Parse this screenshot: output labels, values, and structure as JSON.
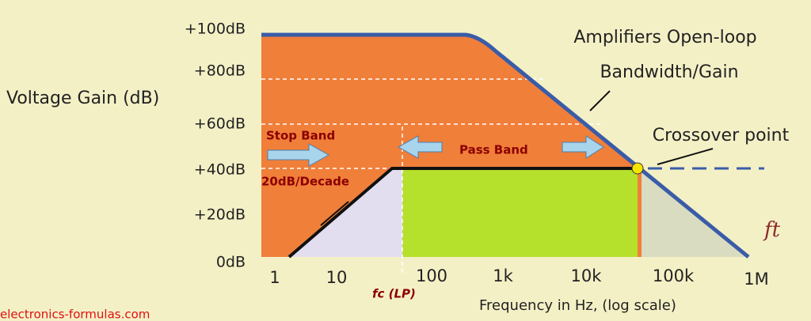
{
  "title": [
    "Amplifiers Open-loop",
    "Bandwidth/Gain"
  ],
  "y_axis_label": "Voltage Gain (dB)",
  "y_labels": [
    "+100dB",
    "+80dB",
    "+60dB",
    "+40dB",
    "+20dB",
    "0dB"
  ],
  "x_labels": [
    "1",
    "10",
    "100",
    "1k",
    "10k",
    "100k",
    "1M"
  ],
  "x_axis_label": "Frequency in Hz, (log scale)",
  "annotations": {
    "stop_band": "Stop Band",
    "pass_band": "Pass Band",
    "slope": "20dB/Decade",
    "crossover": "Crossover point",
    "fc": "fc (LP)",
    "ft": "ft"
  },
  "credit": "electronics-formulas.com"
}
